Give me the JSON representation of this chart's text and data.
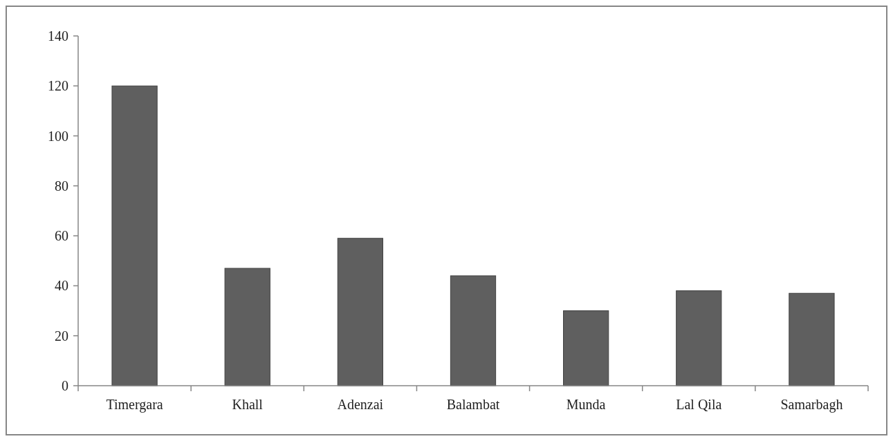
{
  "chart_data": {
    "type": "bar",
    "categories": [
      "Timergara",
      "Khall",
      "Adenzai",
      "Balambat",
      "Munda",
      "Lal Qila",
      "Samarbagh"
    ],
    "values": [
      120,
      47,
      59,
      44,
      30,
      38,
      37
    ],
    "color": "#5f5f5f",
    "ylim": [
      0,
      140
    ],
    "yticks": [
      0,
      20,
      40,
      60,
      80,
      100,
      120,
      140
    ],
    "grid": false
  }
}
